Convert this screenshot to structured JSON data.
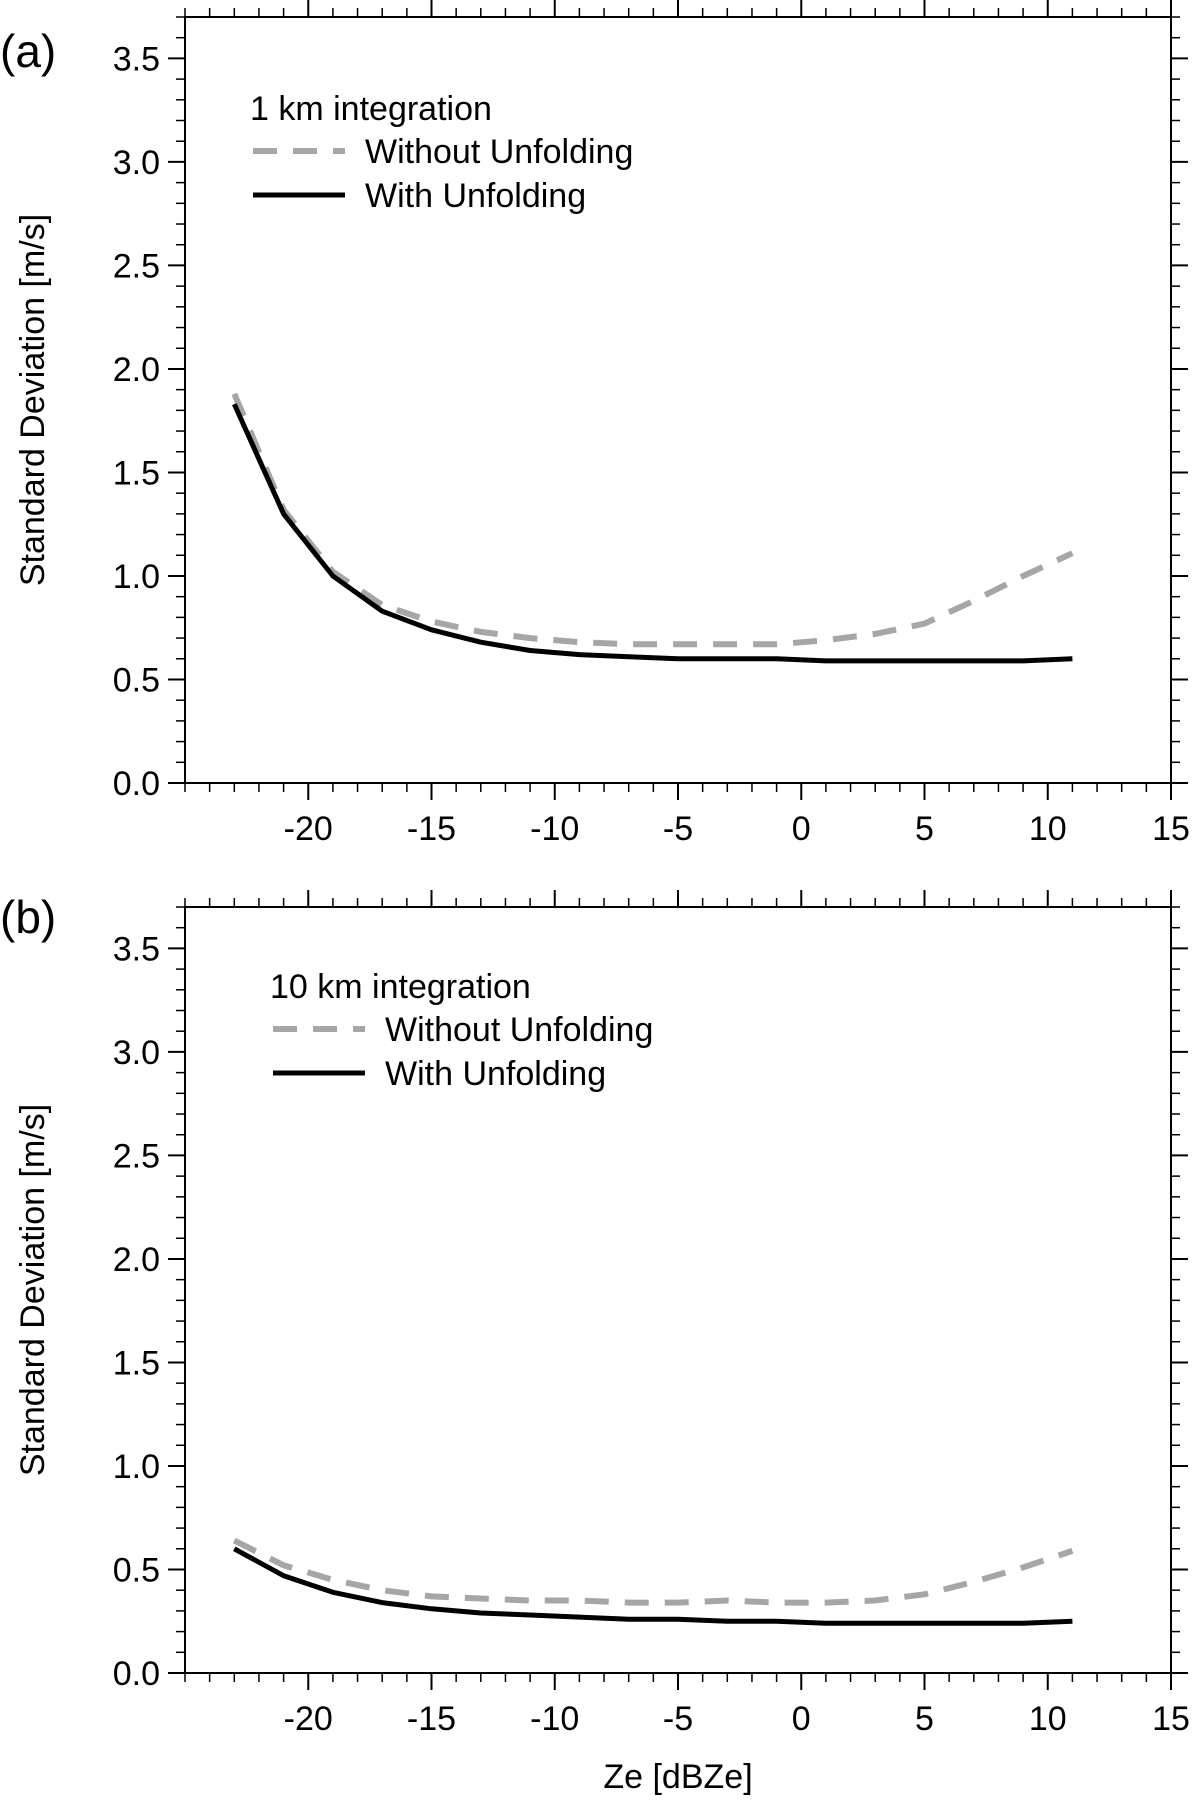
{
  "chart_data": [
    {
      "type": "line",
      "panel_label": "(a)",
      "legend_title": "1 km integration",
      "xlabel": "",
      "ylabel": "Standard Deviation [m/s]",
      "xlim": [
        -25,
        15
      ],
      "ylim": [
        0.0,
        3.7
      ],
      "xticks": [
        -20,
        -15,
        -10,
        -5,
        0,
        5,
        10,
        15
      ],
      "xtick_labels": [
        "-20",
        "-15",
        "-10",
        "-5",
        "0",
        "5",
        "10",
        "15"
      ],
      "yticks": [
        0.0,
        0.5,
        1.0,
        1.5,
        2.0,
        2.5,
        3.0,
        3.5
      ],
      "ytick_labels": [
        "0.0",
        "0.5",
        "1.0",
        "1.5",
        "2.0",
        "2.5",
        "3.0",
        "3.5"
      ],
      "legend_position": "top-left",
      "grid": false,
      "x": [
        -23,
        -21,
        -19,
        -17,
        -15,
        -13,
        -11,
        -9,
        -7,
        -5,
        -3,
        -1,
        1,
        3,
        5,
        7,
        9,
        11
      ],
      "series": [
        {
          "name": "Without Unfolding",
          "color": "#a6a6a6",
          "style": "dashed",
          "values": [
            1.88,
            1.32,
            1.02,
            0.86,
            0.78,
            0.73,
            0.7,
            0.68,
            0.67,
            0.67,
            0.67,
            0.67,
            0.69,
            0.72,
            0.77,
            0.88,
            1.0,
            1.11
          ]
        },
        {
          "name": "With Unfolding",
          "color": "#000000",
          "style": "solid",
          "values": [
            1.83,
            1.3,
            1.0,
            0.83,
            0.74,
            0.68,
            0.64,
            0.62,
            0.61,
            0.6,
            0.6,
            0.6,
            0.59,
            0.59,
            0.59,
            0.59,
            0.59,
            0.6
          ]
        }
      ]
    },
    {
      "type": "line",
      "panel_label": "(b)",
      "legend_title": "10 km integration",
      "xlabel": "Ze [dBZe]",
      "ylabel": "Standard Deviation [m/s]",
      "xlim": [
        -25,
        15
      ],
      "ylim": [
        0.0,
        3.7
      ],
      "xticks": [
        -20,
        -15,
        -10,
        -5,
        0,
        5,
        10,
        15
      ],
      "xtick_labels": [
        "-20",
        "-15",
        "-10",
        "-5",
        "0",
        "5",
        "10",
        "15"
      ],
      "yticks": [
        0.0,
        0.5,
        1.0,
        1.5,
        2.0,
        2.5,
        3.0,
        3.5
      ],
      "ytick_labels": [
        "0.0",
        "0.5",
        "1.0",
        "1.5",
        "2.0",
        "2.5",
        "3.0",
        "3.5"
      ],
      "legend_position": "top-left",
      "grid": false,
      "x": [
        -23,
        -21,
        -19,
        -17,
        -15,
        -13,
        -11,
        -9,
        -7,
        -5,
        -3,
        -1,
        1,
        3,
        5,
        7,
        9,
        11
      ],
      "series": [
        {
          "name": "Without Unfolding",
          "color": "#a6a6a6",
          "style": "dashed",
          "values": [
            0.64,
            0.52,
            0.45,
            0.4,
            0.37,
            0.36,
            0.35,
            0.35,
            0.34,
            0.34,
            0.35,
            0.34,
            0.34,
            0.35,
            0.38,
            0.44,
            0.51,
            0.59
          ]
        },
        {
          "name": "With Unfolding",
          "color": "#000000",
          "style": "solid",
          "values": [
            0.6,
            0.47,
            0.39,
            0.34,
            0.31,
            0.29,
            0.28,
            0.27,
            0.26,
            0.26,
            0.25,
            0.25,
            0.24,
            0.24,
            0.24,
            0.24,
            0.24,
            0.25
          ]
        }
      ]
    }
  ]
}
